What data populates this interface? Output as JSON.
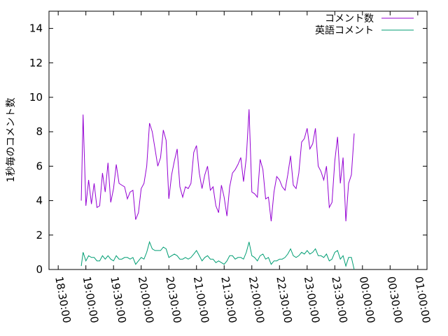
{
  "chart_data": {
    "type": "line",
    "title": "",
    "xlabel": "",
    "ylabel": "1秒毎のコメント数",
    "xlim": [
      "18:20:00",
      "01:10:00"
    ],
    "ylim": [
      0,
      15
    ],
    "x_ticks": [
      "18:30:00",
      "19:00:00",
      "19:30:00",
      "20:00:00",
      "20:30:00",
      "21:00:00",
      "21:30:00",
      "22:00:00",
      "22:30:00",
      "23:00:00",
      "23:30:00",
      "00:00:00",
      "00:30:00",
      "01:00:00"
    ],
    "y_ticks": [
      0,
      2,
      4,
      6,
      8,
      10,
      12,
      14
    ],
    "legend_position": "top-right",
    "grid": false,
    "series": [
      {
        "name": "コメント数",
        "color": "#9400d3",
        "points": [
          [
            "18:55:00",
            4.0
          ],
          [
            "18:57:00",
            9.0
          ],
          [
            "19:00:00",
            3.7
          ],
          [
            "19:03:00",
            5.2
          ],
          [
            "19:06:00",
            3.8
          ],
          [
            "19:09:00",
            5.0
          ],
          [
            "19:12:00",
            3.6
          ],
          [
            "19:15:00",
            3.7
          ],
          [
            "19:18:00",
            5.6
          ],
          [
            "19:21:00",
            4.5
          ],
          [
            "19:24:00",
            6.2
          ],
          [
            "19:27:00",
            3.9
          ],
          [
            "19:30:00",
            4.7
          ],
          [
            "19:33:00",
            6.1
          ],
          [
            "19:36:00",
            5.0
          ],
          [
            "19:39:00",
            4.9
          ],
          [
            "19:42:00",
            4.8
          ],
          [
            "19:45:00",
            4.1
          ],
          [
            "19:48:00",
            4.5
          ],
          [
            "19:51:00",
            4.6
          ],
          [
            "19:54:00",
            2.9
          ],
          [
            "19:57:00",
            3.3
          ],
          [
            "20:00:00",
            4.7
          ],
          [
            "20:03:00",
            5.0
          ],
          [
            "20:06:00",
            6.0
          ],
          [
            "20:09:00",
            8.5
          ],
          [
            "20:12:00",
            8.0
          ],
          [
            "20:15:00",
            7.0
          ],
          [
            "20:18:00",
            6.0
          ],
          [
            "20:21:00",
            6.5
          ],
          [
            "20:24:00",
            8.1
          ],
          [
            "20:27:00",
            7.5
          ],
          [
            "20:30:00",
            4.1
          ],
          [
            "20:33:00",
            5.5
          ],
          [
            "20:36:00",
            6.3
          ],
          [
            "20:39:00",
            7.0
          ],
          [
            "20:42:00",
            4.8
          ],
          [
            "20:45:00",
            4.2
          ],
          [
            "20:48:00",
            4.8
          ],
          [
            "20:51:00",
            4.7
          ],
          [
            "20:54:00",
            5.0
          ],
          [
            "20:57:00",
            6.8
          ],
          [
            "21:00:00",
            7.2
          ],
          [
            "21:03:00",
            5.6
          ],
          [
            "21:06:00",
            4.7
          ],
          [
            "21:09:00",
            5.5
          ],
          [
            "21:12:00",
            6.0
          ],
          [
            "21:15:00",
            4.6
          ],
          [
            "21:18:00",
            4.8
          ],
          [
            "21:21:00",
            3.7
          ],
          [
            "21:24:00",
            3.3
          ],
          [
            "21:27:00",
            4.9
          ],
          [
            "21:30:00",
            4.2
          ],
          [
            "21:33:00",
            3.1
          ],
          [
            "21:36:00",
            4.8
          ],
          [
            "21:39:00",
            5.6
          ],
          [
            "21:42:00",
            5.8
          ],
          [
            "21:45:00",
            6.1
          ],
          [
            "21:48:00",
            6.5
          ],
          [
            "21:51:00",
            5.1
          ],
          [
            "21:54:00",
            6.5
          ],
          [
            "21:57:00",
            9.3
          ],
          [
            "22:00:00",
            4.5
          ],
          [
            "22:03:00",
            4.4
          ],
          [
            "22:06:00",
            4.2
          ],
          [
            "22:09:00",
            6.4
          ],
          [
            "22:12:00",
            5.8
          ],
          [
            "22:15:00",
            4.1
          ],
          [
            "22:18:00",
            4.2
          ],
          [
            "22:21:00",
            2.8
          ],
          [
            "22:24:00",
            4.5
          ],
          [
            "22:27:00",
            5.4
          ],
          [
            "22:30:00",
            5.2
          ],
          [
            "22:33:00",
            4.8
          ],
          [
            "22:36:00",
            4.6
          ],
          [
            "22:39:00",
            5.5
          ],
          [
            "22:42:00",
            6.6
          ],
          [
            "22:45:00",
            4.9
          ],
          [
            "22:48:00",
            4.7
          ],
          [
            "22:51:00",
            5.6
          ],
          [
            "22:54:00",
            7.4
          ],
          [
            "22:57:00",
            7.6
          ],
          [
            "23:00:00",
            8.2
          ],
          [
            "23:03:00",
            7.0
          ],
          [
            "23:06:00",
            7.3
          ],
          [
            "23:09:00",
            8.2
          ],
          [
            "23:12:00",
            6.0
          ],
          [
            "23:15:00",
            5.7
          ],
          [
            "23:18:00",
            5.2
          ],
          [
            "23:21:00",
            6.0
          ],
          [
            "23:24:00",
            3.6
          ],
          [
            "23:27:00",
            3.9
          ],
          [
            "23:30:00",
            6.3
          ],
          [
            "23:33:00",
            7.7
          ],
          [
            "23:36:00",
            5.0
          ],
          [
            "23:39:00",
            6.5
          ],
          [
            "23:42:00",
            2.8
          ],
          [
            "23:45:00",
            5.0
          ],
          [
            "23:48:00",
            5.5
          ],
          [
            "23:51:00",
            7.9
          ]
        ]
      },
      {
        "name": "英語コメント",
        "color": "#009e73",
        "points": [
          [
            "18:55:00",
            0.2
          ],
          [
            "18:57:00",
            1.0
          ],
          [
            "19:00:00",
            0.5
          ],
          [
            "19:03:00",
            0.8
          ],
          [
            "19:06:00",
            0.7
          ],
          [
            "19:09:00",
            0.7
          ],
          [
            "19:12:00",
            0.5
          ],
          [
            "19:15:00",
            0.5
          ],
          [
            "19:18:00",
            0.8
          ],
          [
            "19:21:00",
            0.6
          ],
          [
            "19:24:00",
            0.8
          ],
          [
            "19:27:00",
            0.6
          ],
          [
            "19:30:00",
            0.5
          ],
          [
            "19:33:00",
            0.8
          ],
          [
            "19:36:00",
            0.6
          ],
          [
            "19:39:00",
            0.6
          ],
          [
            "19:42:00",
            0.7
          ],
          [
            "19:45:00",
            0.7
          ],
          [
            "19:48:00",
            0.6
          ],
          [
            "19:51:00",
            0.7
          ],
          [
            "19:54:00",
            0.3
          ],
          [
            "19:57:00",
            0.5
          ],
          [
            "20:00:00",
            0.7
          ],
          [
            "20:03:00",
            0.6
          ],
          [
            "20:06:00",
            1.0
          ],
          [
            "20:09:00",
            1.6
          ],
          [
            "20:12:00",
            1.2
          ],
          [
            "20:15:00",
            1.1
          ],
          [
            "20:18:00",
            1.1
          ],
          [
            "20:21:00",
            1.1
          ],
          [
            "20:24:00",
            1.3
          ],
          [
            "20:27:00",
            1.2
          ],
          [
            "20:30:00",
            0.7
          ],
          [
            "20:33:00",
            0.8
          ],
          [
            "20:36:00",
            0.9
          ],
          [
            "20:39:00",
            0.8
          ],
          [
            "20:42:00",
            0.6
          ],
          [
            "20:45:00",
            0.6
          ],
          [
            "20:48:00",
            0.7
          ],
          [
            "20:51:00",
            0.6
          ],
          [
            "20:54:00",
            0.7
          ],
          [
            "20:57:00",
            0.9
          ],
          [
            "21:00:00",
            1.1
          ],
          [
            "21:03:00",
            0.8
          ],
          [
            "21:06:00",
            0.5
          ],
          [
            "21:09:00",
            0.7
          ],
          [
            "21:12:00",
            0.8
          ],
          [
            "21:15:00",
            0.6
          ],
          [
            "21:18:00",
            0.6
          ],
          [
            "21:21:00",
            0.4
          ],
          [
            "21:24:00",
            0.5
          ],
          [
            "21:27:00",
            0.4
          ],
          [
            "21:30:00",
            0.3
          ],
          [
            "21:33:00",
            0.5
          ],
          [
            "21:36:00",
            0.8
          ],
          [
            "21:39:00",
            0.8
          ],
          [
            "21:42:00",
            0.6
          ],
          [
            "21:45:00",
            0.7
          ],
          [
            "21:48:00",
            0.7
          ],
          [
            "21:51:00",
            0.6
          ],
          [
            "21:54:00",
            1.0
          ],
          [
            "21:57:00",
            1.6
          ],
          [
            "22:00:00",
            0.8
          ],
          [
            "22:03:00",
            0.7
          ],
          [
            "22:06:00",
            0.5
          ],
          [
            "22:09:00",
            0.8
          ],
          [
            "22:12:00",
            0.9
          ],
          [
            "22:15:00",
            0.6
          ],
          [
            "22:18:00",
            0.7
          ],
          [
            "22:21:00",
            0.3
          ],
          [
            "22:24:00",
            0.5
          ],
          [
            "22:27:00",
            0.5
          ],
          [
            "22:30:00",
            0.6
          ],
          [
            "22:33:00",
            0.6
          ],
          [
            "22:36:00",
            0.7
          ],
          [
            "22:39:00",
            0.9
          ],
          [
            "22:42:00",
            1.2
          ],
          [
            "22:45:00",
            0.8
          ],
          [
            "22:48:00",
            0.7
          ],
          [
            "22:51:00",
            0.8
          ],
          [
            "22:54:00",
            1.0
          ],
          [
            "22:57:00",
            0.9
          ],
          [
            "23:00:00",
            1.1
          ],
          [
            "23:03:00",
            0.9
          ],
          [
            "23:06:00",
            1.0
          ],
          [
            "23:09:00",
            1.2
          ],
          [
            "23:12:00",
            0.8
          ],
          [
            "23:15:00",
            0.8
          ],
          [
            "23:18:00",
            0.7
          ],
          [
            "23:21:00",
            0.9
          ],
          [
            "23:24:00",
            0.5
          ],
          [
            "23:27:00",
            0.6
          ],
          [
            "23:30:00",
            1.0
          ],
          [
            "23:33:00",
            1.1
          ],
          [
            "23:36:00",
            0.6
          ],
          [
            "23:39:00",
            0.8
          ],
          [
            "23:42:00",
            0.2
          ],
          [
            "23:45:00",
            0.7
          ],
          [
            "23:48:00",
            0.7
          ],
          [
            "23:51:00",
            0.0
          ]
        ]
      }
    ]
  }
}
